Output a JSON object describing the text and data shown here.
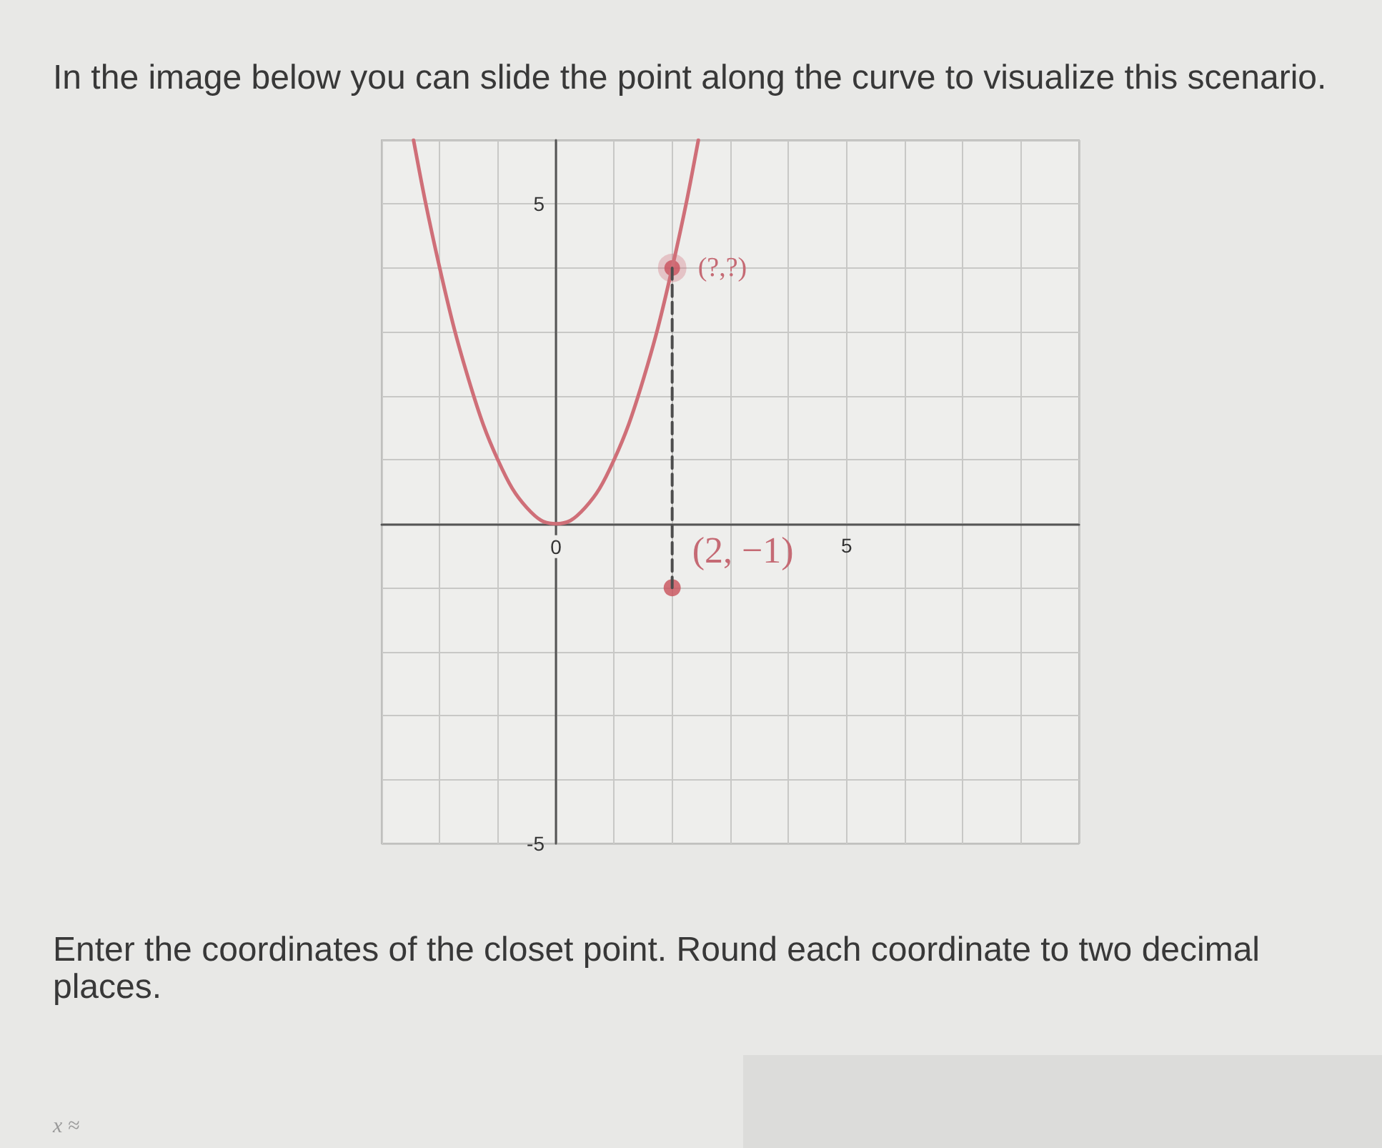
{
  "chart_data": {
    "type": "line",
    "title": "In the image below you can slide the point along the curve to visualize this scenario.",
    "annotations": [
      {
        "text": "(?,?)",
        "x": 2,
        "y": 4
      },
      {
        "text": "(2, −1)",
        "x": 2,
        "y": -1
      },
      "Enter the coordinates of the closet point. Round each coordinate to two decimal places.",
      "x ≈"
    ],
    "series": [
      {
        "type": "line",
        "x": [
          -2.45,
          -2.25,
          -2,
          -1.75,
          -1.5,
          -1.25,
          -1,
          -0.75,
          -0.5,
          -0.25,
          0,
          0.25,
          0.5,
          0.75,
          1,
          1.25,
          1.5,
          1.75,
          2,
          2.25,
          2.45
        ],
        "values": [
          6,
          5.05,
          4,
          3.05,
          2.25,
          1.55,
          1,
          0.55,
          0.25,
          0.05,
          0,
          0.05,
          0.25,
          0.55,
          1,
          1.55,
          2.25,
          3.05,
          4,
          5.05,
          6
        ],
        "color": "#cf6f78",
        "marker": "none"
      },
      {
        "type": "line",
        "x": [
          2,
          2
        ],
        "values": [
          4,
          -1
        ],
        "color": "#4d4d4d",
        "marker": "none",
        "line_style": "dashed"
      },
      {
        "type": "scatter",
        "x": [
          2
        ],
        "values": [
          4
        ],
        "color": "#c9505c",
        "marker": "circle"
      },
      {
        "type": "scatter",
        "x": [
          2
        ],
        "values": [
          -1
        ],
        "color": "#c8505a",
        "marker": "circle"
      }
    ],
    "xlim": [
      -3,
      9
    ],
    "ylim": [
      -5,
      6
    ],
    "xticks": [
      {
        "value": -3,
        "label": null
      },
      {
        "value": -2,
        "label": null
      },
      {
        "value": -1,
        "label": null
      },
      0,
      {
        "value": 1,
        "label": null
      },
      {
        "value": 2,
        "label": null
      },
      {
        "value": 3,
        "label": null
      },
      {
        "value": 4,
        "label": null
      },
      5,
      {
        "value": 6,
        "label": null
      },
      {
        "value": 7,
        "label": null
      },
      {
        "value": 8,
        "label": null
      },
      {
        "value": 9,
        "label": null
      }
    ],
    "yticks": [
      -5,
      {
        "value": -4,
        "label": null
      },
      {
        "value": -3,
        "label": null
      },
      {
        "value": -2,
        "label": null
      },
      {
        "value": -1,
        "label": null
      },
      {
        "value": 0,
        "label": null
      },
      {
        "value": 1,
        "label": null
      },
      {
        "value": 2,
        "label": null
      },
      {
        "value": 3,
        "label": null
      },
      {
        "value": 4,
        "label": null
      },
      5,
      {
        "value": 6,
        "label": null
      }
    ],
    "grid": true
  }
}
